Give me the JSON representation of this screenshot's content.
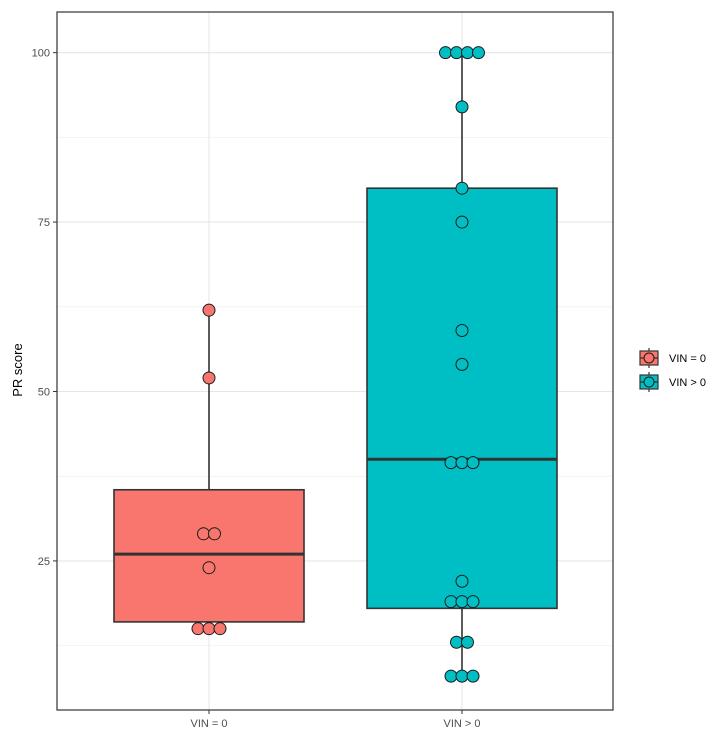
{
  "chart_data": {
    "type": "boxplot",
    "title": "",
    "xlabel": "",
    "ylabel": "PR score",
    "ylim": [
      3,
      106
    ],
    "yticks": [
      25,
      50,
      75,
      100
    ],
    "grid": true,
    "legend_position": "right",
    "categories": [
      "VIN = 0",
      "VIN > 0"
    ],
    "series": [
      {
        "name": "VIN = 0",
        "color": "#F8766D",
        "box": {
          "min": 15,
          "q1": 16,
          "median": 26,
          "q3": 35.5,
          "max": 62
        },
        "points": [
          {
            "y": 62,
            "count": 1
          },
          {
            "y": 52,
            "count": 1
          },
          {
            "y": 29,
            "count": 2
          },
          {
            "y": 24,
            "count": 1
          },
          {
            "y": 15,
            "count": 3
          }
        ]
      },
      {
        "name": "VIN > 0",
        "color": "#00BFC4",
        "box": {
          "min": 8,
          "q1": 18,
          "median": 40,
          "q3": 80,
          "max": 100
        },
        "points": [
          {
            "y": 100,
            "count": 4
          },
          {
            "y": 92,
            "count": 1
          },
          {
            "y": 80,
            "count": 1
          },
          {
            "y": 75,
            "count": 1
          },
          {
            "y": 59,
            "count": 1
          },
          {
            "y": 54,
            "count": 1
          },
          {
            "y": 39.5,
            "count": 3
          },
          {
            "y": 22,
            "count": 1
          },
          {
            "y": 19,
            "count": 3
          },
          {
            "y": 13,
            "count": 2
          },
          {
            "y": 8,
            "count": 3
          }
        ]
      }
    ]
  }
}
